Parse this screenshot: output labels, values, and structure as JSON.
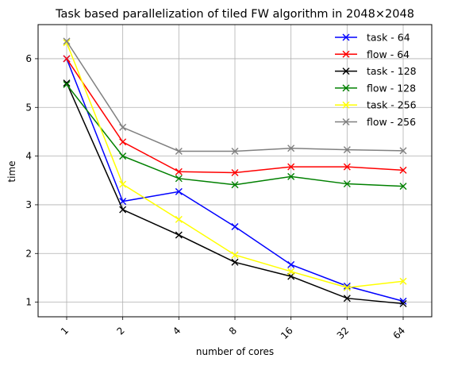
{
  "chart_data": {
    "type": "line",
    "title": "Task based parallelization of tiled FW algorithm in 2048×2048",
    "xlabel": "number of cores",
    "ylabel": "time",
    "categories": [
      "1",
      "2",
      "4",
      "8",
      "16",
      "32",
      "64"
    ],
    "ylim": [
      0.7,
      6.7
    ],
    "yticks": [
      1,
      2,
      3,
      4,
      5,
      6
    ],
    "grid": true,
    "legend_position": "top-right",
    "marker": "x",
    "series": [
      {
        "name": "task - 64",
        "color": "#0000ff",
        "values": [
          6.0,
          3.07,
          3.27,
          2.55,
          1.77,
          1.33,
          1.02
        ]
      },
      {
        "name": "flow - 64",
        "color": "#ff0000",
        "values": [
          6.0,
          4.29,
          3.68,
          3.66,
          3.78,
          3.78,
          3.71
        ]
      },
      {
        "name": "task - 128",
        "color": "#000000",
        "values": [
          5.5,
          2.9,
          2.38,
          1.82,
          1.53,
          1.08,
          0.97
        ]
      },
      {
        "name": "flow - 128",
        "color": "#008000",
        "values": [
          5.47,
          4.0,
          3.54,
          3.41,
          3.58,
          3.43,
          3.38
        ]
      },
      {
        "name": "task - 256",
        "color": "#ffff00",
        "values": [
          6.33,
          3.42,
          2.7,
          1.97,
          1.63,
          1.3,
          1.43
        ]
      },
      {
        "name": "flow - 256",
        "color": "#808080",
        "values": [
          6.36,
          4.59,
          4.1,
          4.1,
          4.16,
          4.13,
          4.11
        ]
      }
    ]
  }
}
